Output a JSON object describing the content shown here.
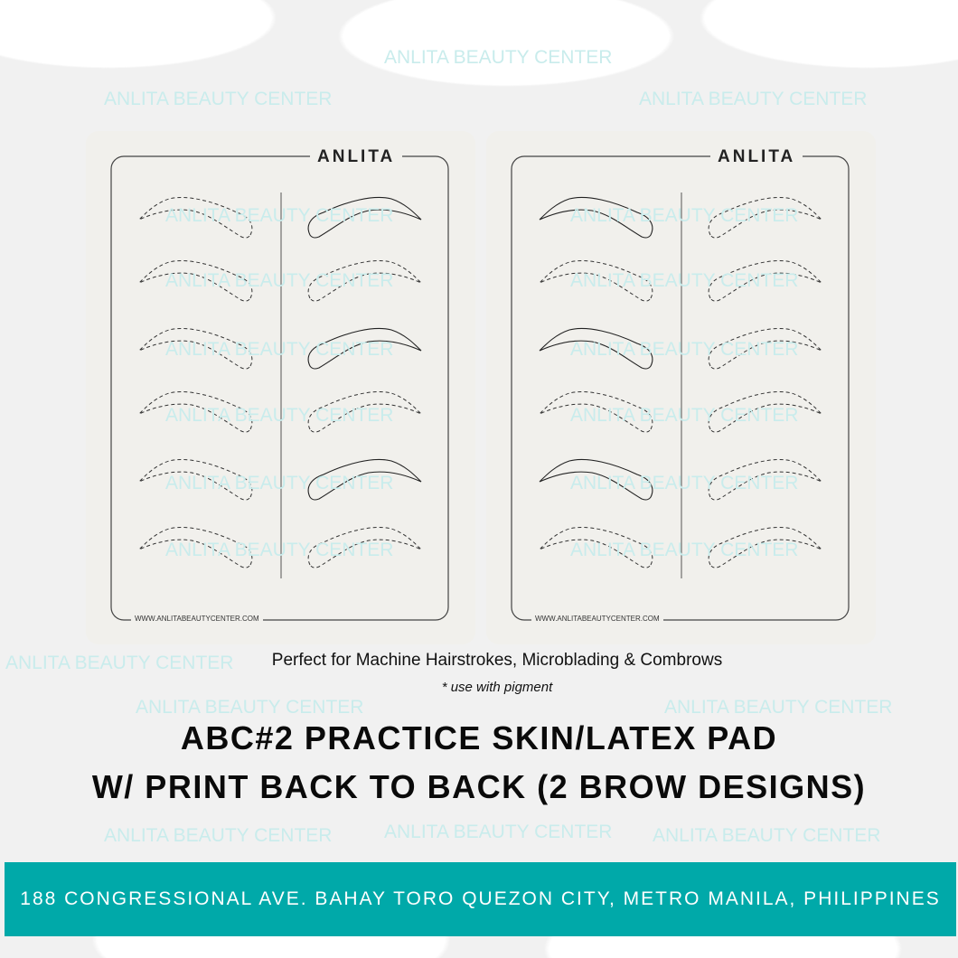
{
  "watermark": "ANLITA BEAUTY CENTER",
  "pads": [
    {
      "logo": "ANLITA",
      "url": "WWW.ANLITABEAUTYCENTER.COM",
      "solid_side": "right"
    },
    {
      "logo": "ANLITA",
      "url": "WWW.ANLITABEAUTYCENTER.COM",
      "solid_side": "left"
    }
  ],
  "tagline": "Perfect for Machine Hairstrokes, Microblading & Combrows",
  "note": "* use with pigment",
  "headline": [
    "ABC#2 PRACTICE SKIN/LATEX PAD",
    "W/ PRINT BACK TO BACK (2 BROW DESIGNS)"
  ],
  "address": "188 CONGRESSIONAL AVE. BAHAY TORO QUEZON CITY, METRO MANILA, PHILIPPINES",
  "colors": {
    "banner": "#00a9a9",
    "watermark": "#c9ecec",
    "pad": "#f1f0ec"
  }
}
